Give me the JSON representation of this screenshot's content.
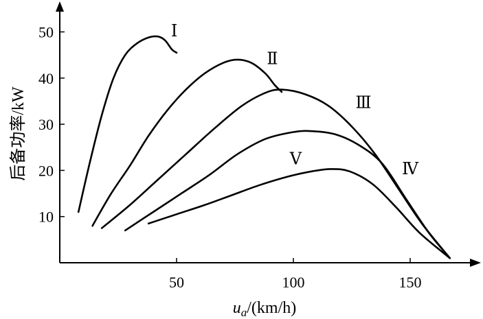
{
  "chart_data": {
    "type": "line",
    "xlabel_var": "u",
    "xlabel_sub": "a",
    "xlabel_unit": "/(km/h)",
    "ylabel": "后备功率/kW",
    "xticks": [
      50,
      100,
      150
    ],
    "yticks": [
      10,
      20,
      30,
      40,
      50
    ],
    "xlim": [
      0,
      175
    ],
    "ylim": [
      0,
      55
    ],
    "series": [
      {
        "name": "Ⅰ",
        "points": [
          [
            8,
            11
          ],
          [
            13,
            22
          ],
          [
            18,
            32
          ],
          [
            23,
            40
          ],
          [
            28,
            45
          ],
          [
            33,
            47.5
          ],
          [
            38,
            48.8
          ],
          [
            42,
            49
          ],
          [
            45,
            48.2
          ],
          [
            48,
            46.2
          ],
          [
            50,
            45.5
          ]
        ]
      },
      {
        "name": "Ⅱ",
        "points": [
          [
            14,
            8
          ],
          [
            22,
            15
          ],
          [
            30,
            21
          ],
          [
            38,
            27.5
          ],
          [
            46,
            33
          ],
          [
            54,
            37.5
          ],
          [
            62,
            41
          ],
          [
            70,
            43.3
          ],
          [
            76,
            44
          ],
          [
            82,
            43.3
          ],
          [
            88,
            41
          ],
          [
            92,
            38.5
          ],
          [
            95,
            37
          ]
        ]
      },
      {
        "name": "Ⅲ",
        "points": [
          [
            18,
            7.5
          ],
          [
            30,
            12.5
          ],
          [
            42,
            18
          ],
          [
            54,
            23.5
          ],
          [
            66,
            29
          ],
          [
            78,
            34
          ],
          [
            88,
            36.8
          ],
          [
            95,
            37.5
          ],
          [
            105,
            36.5
          ],
          [
            115,
            34
          ],
          [
            125,
            29.5
          ],
          [
            135,
            23.5
          ],
          [
            145,
            16
          ],
          [
            155,
            8.5
          ],
          [
            167,
            1
          ]
        ]
      },
      {
        "name": "Ⅳ",
        "points": [
          [
            28,
            7
          ],
          [
            40,
            11
          ],
          [
            52,
            15
          ],
          [
            64,
            19
          ],
          [
            76,
            23.5
          ],
          [
            88,
            26.8
          ],
          [
            100,
            28.3
          ],
          [
            108,
            28.5
          ],
          [
            118,
            27.8
          ],
          [
            128,
            25.5
          ],
          [
            138,
            21.5
          ],
          [
            148,
            14
          ],
          [
            158,
            6.5
          ],
          [
            167,
            1
          ]
        ]
      },
      {
        "name": "Ⅴ",
        "points": [
          [
            38,
            8.5
          ],
          [
            50,
            10.5
          ],
          [
            62,
            12.5
          ],
          [
            74,
            14.7
          ],
          [
            86,
            16.9
          ],
          [
            98,
            18.7
          ],
          [
            108,
            19.8
          ],
          [
            116,
            20.3
          ],
          [
            124,
            19.8
          ],
          [
            134,
            17
          ],
          [
            144,
            12
          ],
          [
            154,
            6.5
          ],
          [
            167,
            1
          ]
        ]
      }
    ],
    "curve_labels": [
      {
        "text": "Ⅰ",
        "at": [
          49,
          49
        ]
      },
      {
        "text": "Ⅱ",
        "at": [
          91,
          43
        ]
      },
      {
        "text": "Ⅲ",
        "at": [
          130,
          33.5
        ]
      },
      {
        "text": "Ⅳ",
        "at": [
          150,
          19.2
        ]
      },
      {
        "text": "Ⅴ",
        "at": [
          101,
          21.3
        ]
      }
    ]
  }
}
